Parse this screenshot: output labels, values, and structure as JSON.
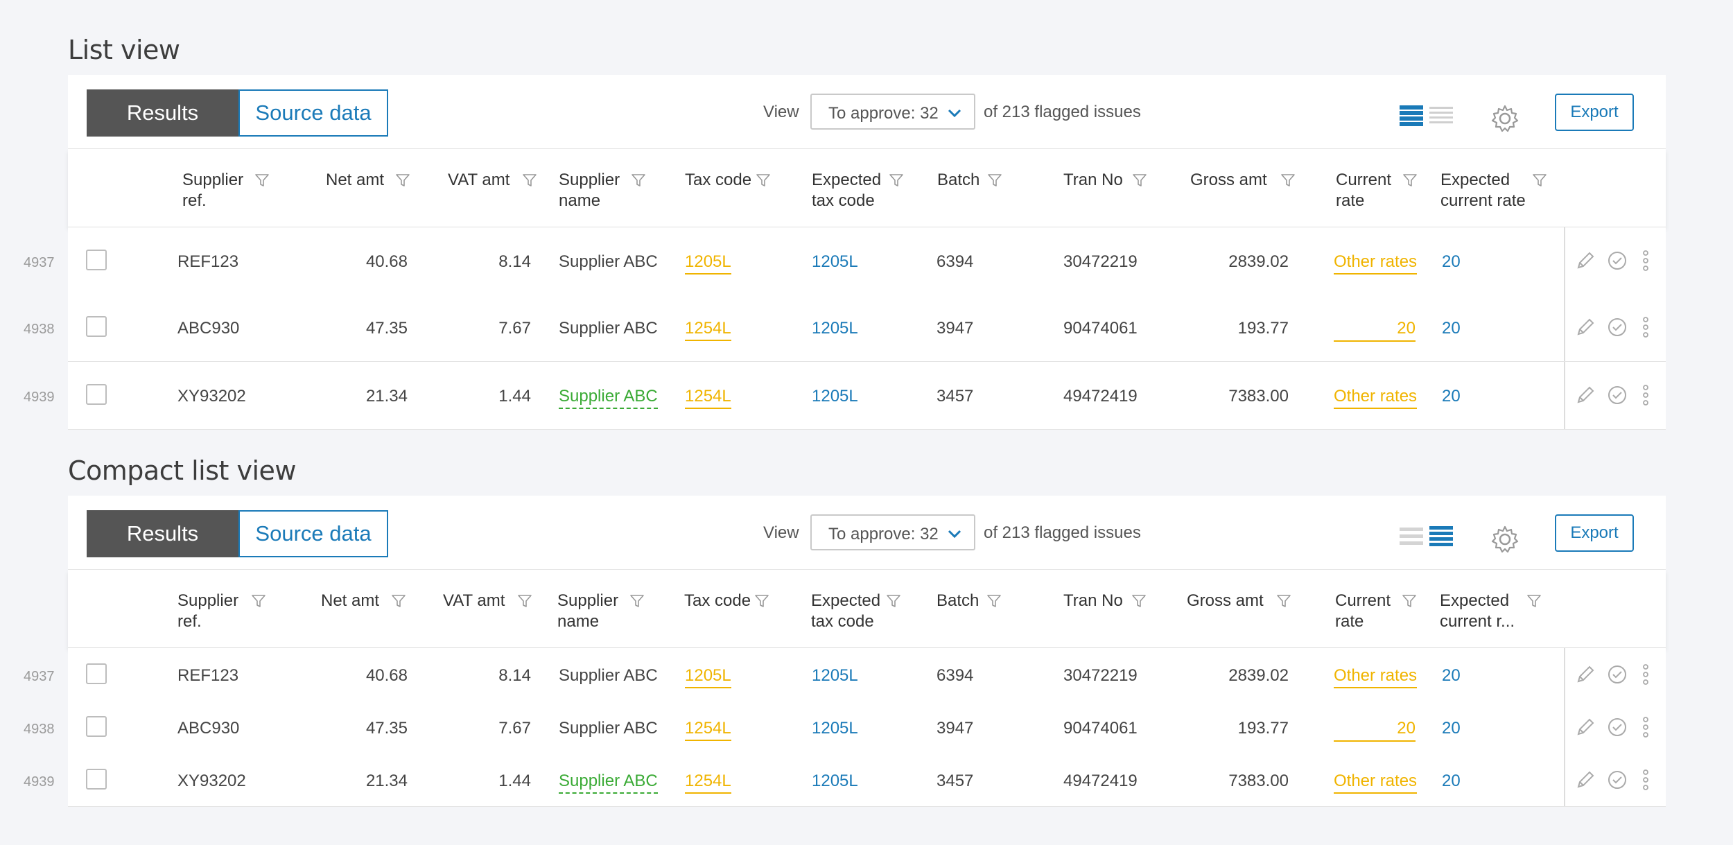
{
  "list_view": {
    "title": "List view",
    "tabs": [
      {
        "label": "Results"
      },
      {
        "label": "Source data"
      }
    ],
    "view_label": "View",
    "select_value": "To approve: 32",
    "issues_text": "of 213 flagged issues",
    "export_label": "Export",
    "columns": [
      "Supplier\nref.",
      "Net amt",
      "VAT amt",
      "Supplier\nname",
      "Tax code",
      "Expected\ntax code",
      "Batch",
      "Tran No",
      "Gross amt",
      "Current\nrate",
      "Expected\ncurrent rate"
    ],
    "rows": [
      {
        "num": "4937",
        "ref": "REF123",
        "net": "40.68",
        "vat": "8.14",
        "supplier": "Supplier ABC",
        "tax": "1205L",
        "exp_tax": "1205L",
        "batch": "6394",
        "tran": "30472219",
        "gross": "2839.02",
        "rate": "Other rates",
        "exp_rate": "20"
      },
      {
        "num": "4938",
        "ref": "ABC930",
        "net": "47.35",
        "vat": "7.67",
        "supplier": "Supplier ABC",
        "tax": "1254L",
        "exp_tax": "1205L",
        "batch": "3947",
        "tran": "90474061",
        "gross": "193.77",
        "rate": "20",
        "exp_rate": "20"
      },
      {
        "num": "4939",
        "ref": "XY93202",
        "net": "21.34",
        "vat": "1.44",
        "supplier": "Supplier ABC",
        "tax": "1254L",
        "exp_tax": "1205L",
        "batch": "3457",
        "tran": "49472419",
        "gross": "7383.00",
        "rate": "Other rates",
        "exp_rate": "20"
      }
    ]
  },
  "compact_view": {
    "title": "Compact list view",
    "tabs": [
      {
        "label": "Results"
      },
      {
        "label": "Source data"
      }
    ],
    "view_label": "View",
    "select_value": "To approve: 32",
    "issues_text": "of 213 flagged issues",
    "export_label": "Export",
    "columns": [
      "Supplier\nref.",
      "Net amt",
      "VAT amt",
      "Supplier\nname",
      "Tax code",
      "Expected\ntax code",
      "Batch",
      "Tran No",
      "Gross amt",
      "Current\nrate",
      "Expected\ncurrent r..."
    ],
    "rows": [
      {
        "num": "4937",
        "ref": "REF123",
        "net": "40.68",
        "vat": "8.14",
        "supplier": "Supplier ABC",
        "tax": "1205L",
        "exp_tax": "1205L",
        "batch": "6394",
        "tran": "30472219",
        "gross": "2839.02",
        "rate": "Other rates",
        "exp_rate": "20"
      },
      {
        "num": "4938",
        "ref": "ABC930",
        "net": "47.35",
        "vat": "7.67",
        "supplier": "Supplier ABC",
        "tax": "1254L",
        "exp_tax": "1205L",
        "batch": "3947",
        "tran": "90474061",
        "gross": "193.77",
        "rate": "20",
        "exp_rate": "20"
      },
      {
        "num": "4939",
        "ref": "XY93202",
        "net": "21.34",
        "vat": "1.44",
        "supplier": "Supplier ABC",
        "tax": "1254L",
        "exp_tax": "1205L",
        "batch": "3457",
        "tran": "49472419",
        "gross": "7383.00",
        "rate": "Other rates",
        "exp_rate": "20"
      }
    ]
  },
  "icons": {
    "filter": "filter-icon",
    "gear": "gear-icon",
    "edit": "pencil-icon",
    "approve": "check-circle-icon",
    "more": "more-vertical-icon",
    "list_view": "list-view-icon",
    "compact_view": "compact-view-icon",
    "chevron": "chevron-down-icon"
  },
  "colors": {
    "accent": "#1a7ab8",
    "warning": "#f0b400",
    "success": "#3aaa35",
    "active_tab": "#555555"
  }
}
